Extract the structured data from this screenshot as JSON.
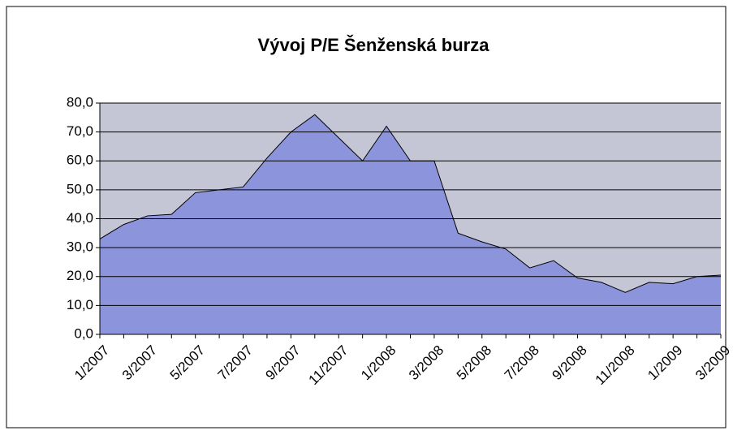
{
  "chart_data": {
    "type": "area",
    "title": "Vývoj P/E Šenženská burza",
    "categories": [
      "1/2007",
      null,
      "3/2007",
      null,
      "5/2007",
      null,
      "7/2007",
      null,
      "9/2007",
      null,
      "11/2007",
      null,
      "1/2008",
      null,
      "3/2008",
      null,
      "5/2008",
      null,
      "7/2008",
      null,
      "9/2008",
      null,
      "11/2008",
      null,
      "1/2009",
      null,
      "3/2009"
    ],
    "values": [
      33,
      38,
      41,
      41.5,
      49,
      50,
      51,
      61,
      70,
      76,
      68,
      60,
      72,
      60,
      60,
      35,
      32,
      29.5,
      23,
      25.5,
      19.5,
      18,
      14.5,
      18,
      17.5,
      20,
      20.5
    ],
    "color": "#8c94dc",
    "ylim": [
      0,
      80
    ],
    "yticks": [
      {
        "value": 0,
        "label": "0,0"
      },
      {
        "value": 10,
        "label": "10,0"
      },
      {
        "value": 20,
        "label": "20,0"
      },
      {
        "value": 30,
        "label": "30,0"
      },
      {
        "value": 40,
        "label": "40,0"
      },
      {
        "value": 50,
        "label": "50,0"
      },
      {
        "value": 60,
        "label": "60,0"
      },
      {
        "value": 70,
        "label": "70,0"
      },
      {
        "value": 80,
        "label": "80,0"
      }
    ],
    "grid": true
  }
}
